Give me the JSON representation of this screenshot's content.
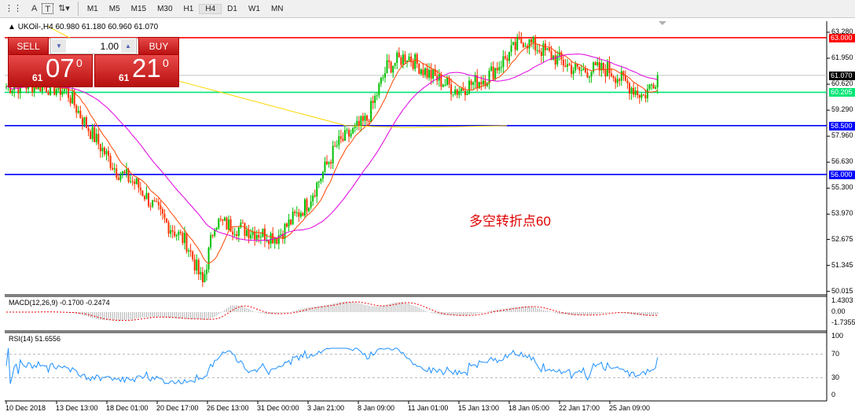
{
  "toolbar": {
    "icons": [
      "period-separators-icon",
      "text-icon",
      "text-label-icon",
      "arrows-icon"
    ],
    "text_icon": "A",
    "label_icon": "T",
    "timeframes": [
      "M1",
      "M5",
      "M15",
      "M30",
      "H1",
      "H4",
      "D1",
      "W1",
      "MN"
    ],
    "active": "H4"
  },
  "chart": {
    "title": "UKOil-,H4  60.980 61.180 60.960 61.070",
    "symbol": "UKOil-",
    "timeframe": "H4",
    "open": 60.98,
    "high": 61.18,
    "low": 60.96,
    "close": 61.07
  },
  "trade_panel": {
    "sell_label": "SELL",
    "buy_label": "BUY",
    "lot": "1.00",
    "sell_prefix": "61",
    "sell_big": "07",
    "sell_sup": "0",
    "buy_prefix": "61",
    "buy_big": "21",
    "buy_sup": "0"
  },
  "price_axis": [
    "63.280",
    "61.950",
    "60.620",
    "59.290",
    "57.960",
    "56.630",
    "55.300",
    "53.970",
    "52.675",
    "51.345",
    "50.015"
  ],
  "hlines": [
    {
      "value": "63.000",
      "color": "#ff0000"
    },
    {
      "value": "61.070",
      "color": "#000000",
      "line": "#c0c0c0"
    },
    {
      "value": "60.205",
      "color": "#00e676"
    },
    {
      "value": "58.500",
      "color": "#0000ff"
    },
    {
      "value": "56.000",
      "color": "#0000ff"
    }
  ],
  "annotation": "多空转折点60",
  "time_axis": [
    "10 Dec 2018",
    "13 Dec 13:00",
    "18 Dec 01:00",
    "20 Dec 17:00",
    "26 Dec 13:00",
    "31 Dec 00:00",
    "3 Jan 21:00",
    "8 Jan 09:00",
    "11 Jan 01:00",
    "15 Jan 13:00",
    "18 Jan 05:00",
    "22 Jan 17:00",
    "25 Jan 09:00"
  ],
  "macd": {
    "label": "MACD(12,26,9) -0.1700 -0.2474",
    "axis": [
      "1.4303",
      "0.00",
      "-1.7355"
    ]
  },
  "rsi": {
    "label": "RSI(14) 51.6556",
    "axis": [
      "100",
      "70",
      "30",
      "0"
    ]
  },
  "chart_data": {
    "type": "candlestick",
    "approx_close_path": [
      [
        0,
        60.5
      ],
      [
        15,
        60.6
      ],
      [
        30,
        60.3
      ],
      [
        40,
        58.5
      ],
      [
        55,
        56.2
      ],
      [
        65,
        55.5
      ],
      [
        80,
        53.5
      ],
      [
        90,
        52.5
      ],
      [
        98,
        50.4
      ],
      [
        104,
        53.6
      ],
      [
        118,
        53.2
      ],
      [
        135,
        52.8
      ],
      [
        150,
        54.5
      ],
      [
        165,
        57.5
      ],
      [
        180,
        58.8
      ],
      [
        190,
        61.5
      ],
      [
        200,
        62.1
      ],
      [
        210,
        61.2
      ],
      [
        225,
        60.3
      ],
      [
        240,
        61.0
      ],
      [
        258,
        62.9
      ],
      [
        270,
        62.2
      ],
      [
        285,
        61.3
      ],
      [
        300,
        61.4
      ],
      [
        318,
        60.0
      ],
      [
        325,
        61.07
      ]
    ],
    "colors": {
      "bull": "#00c000",
      "bear": "#ff3300",
      "ma_fast": "#ff4500",
      "ma_slow": "#e000e0",
      "ma_long": "#ffd700"
    }
  }
}
